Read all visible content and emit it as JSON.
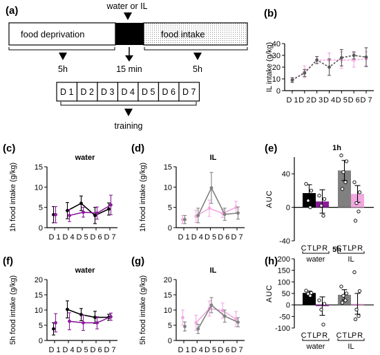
{
  "figure": {
    "panel_labels": {
      "a": "(a)",
      "b": "(b)",
      "c": "(c)",
      "d": "(d)",
      "e": "(e)",
      "f": "(f)",
      "g": "(g)",
      "h": "(h)"
    },
    "protocol": {
      "top_label": "water or IL",
      "deprivation": "food deprivation",
      "intake": "food intake",
      "time_left": "5h",
      "time_mid": "15 min",
      "time_right": "5h",
      "days": [
        "D 1",
        "D 2",
        "D 3",
        "D 4",
        "D 5",
        "D 6",
        "D 7"
      ],
      "training": "training"
    }
  },
  "colors": {
    "black": "#000000",
    "purple": "#8b1a9b",
    "gray": "#808080",
    "pink": "#f2a8e0",
    "light_purple": "#e8b6e0",
    "dark_gray": "#595959"
  },
  "chart_data": [
    {
      "panel": "b",
      "type": "line",
      "title": "",
      "ylabel": "IL intake (g/kg)",
      "categories": [
        "D 1",
        "D 2",
        "D 3",
        "D 4",
        "D 5",
        "D 6",
        "D 7"
      ],
      "ylim": [
        0,
        40
      ],
      "yticks": [
        0,
        10,
        20,
        30,
        40
      ],
      "series": [
        {
          "color": "#f2a8e0",
          "values": [
            9,
            16,
            26,
            26,
            26,
            26,
            27
          ],
          "err": [
            2,
            5,
            3,
            6,
            7,
            6,
            6
          ]
        },
        {
          "color": "#595959",
          "values": [
            9,
            15,
            26,
            20,
            28,
            30,
            28.5
          ],
          "err": [
            2,
            3,
            3,
            7,
            7,
            3,
            8
          ]
        }
      ]
    },
    {
      "panel": "c",
      "type": "line",
      "title": "water",
      "ylabel": "1h food intake (g/kg)",
      "categories": [
        "D 1",
        "D 4",
        "D 5",
        "D 6",
        "D 7"
      ],
      "ylim": [
        0,
        15
      ],
      "yticks": [
        0,
        5,
        10,
        15
      ],
      "series": [
        {
          "color": "#000000",
          "values": [
            3.2,
            4.2,
            6.0,
            3.0,
            4.6
          ],
          "err": [
            2.0,
            2.0,
            1.8,
            2.0,
            1.5
          ]
        },
        {
          "color": "#8b1a9b",
          "values": [
            3.2,
            3.0,
            3.8,
            3.6,
            5.6
          ],
          "err": [
            2.0,
            1.5,
            1.2,
            1.5,
            2.4
          ]
        }
      ]
    },
    {
      "panel": "d",
      "type": "line",
      "title": "IL",
      "ylabel": "1h food intake (g/kg)",
      "categories": [
        "D 1",
        "D 4",
        "D 5",
        "D 6",
        "D 7"
      ],
      "ylim": [
        0,
        15
      ],
      "yticks": [
        0,
        5,
        10,
        15
      ],
      "series": [
        {
          "color": "#f2a8e0",
          "values": [
            2.0,
            2.8,
            4.8,
            3.5,
            5.0
          ],
          "err": [
            1.0,
            1.5,
            2.0,
            1.0,
            1.5
          ]
        },
        {
          "color": "#808080",
          "values": [
            2.0,
            3.0,
            9.8,
            3.3,
            3.6
          ],
          "err": [
            1.0,
            1.8,
            3.8,
            1.5,
            1.5
          ]
        }
      ]
    },
    {
      "panel": "e",
      "type": "bar",
      "title": "1h",
      "ylabel": "AUC",
      "categories": [
        "CTL",
        "PR",
        "CTL",
        "PR"
      ],
      "groups": [
        "water",
        "IL"
      ],
      "ylim": [
        -40,
        60
      ],
      "yticks": [
        -40,
        0,
        40
      ],
      "values": [
        17,
        7,
        44,
        16
      ],
      "err": [
        10,
        14,
        12,
        10
      ],
      "colors": [
        "#000000",
        "#8b1a9b",
        "#808080",
        "#f2a8e0"
      ],
      "points": [
        [
          28,
          20,
          8,
          0
        ],
        [
          14,
          10,
          2,
          -10
        ],
        [
          62,
          55,
          42,
          30,
          22
        ],
        [
          30,
          18,
          5,
          -5,
          -16
        ]
      ]
    },
    {
      "panel": "f",
      "type": "line",
      "title": "water",
      "ylabel": "5h food intake (g/kg)",
      "categories": [
        "D 1",
        "D 4",
        "D 5",
        "D 6",
        "D 7"
      ],
      "ylim": [
        0,
        20
      ],
      "yticks": [
        0,
        5,
        10,
        15,
        20
      ],
      "series": [
        {
          "color": "#000000",
          "values": [
            3.8,
            10.2,
            8.5,
            7.6,
            7.6
          ],
          "err": [
            2.0,
            2.8,
            2.0,
            2.0,
            1.0
          ]
        },
        {
          "color": "#8b1a9b",
          "values": [
            5.8,
            6.3,
            5.8,
            5.8,
            7.8
          ],
          "err": [
            3.0,
            2.8,
            2.5,
            2.0,
            1.2
          ]
        }
      ]
    },
    {
      "panel": "g",
      "type": "line",
      "title": "IL",
      "ylabel": "5h food intake (g/kg)",
      "categories": [
        "D 1",
        "D 4",
        "D 5",
        "D 6",
        "D 7"
      ],
      "ylim": [
        0,
        20
      ],
      "yticks": [
        0,
        5,
        10,
        15,
        20
      ],
      "series": [
        {
          "color": "#f2a8e0",
          "values": [
            7.5,
            5.8,
            10.5,
            9.8,
            7.0
          ],
          "err": [
            2.5,
            2.5,
            2.5,
            2.5,
            2.5
          ]
        },
        {
          "color": "#808080",
          "values": [
            4.6,
            3.8,
            11.6,
            8.0,
            6.0
          ],
          "err": [
            1.5,
            1.5,
            2.5,
            2.0,
            1.5
          ]
        }
      ]
    },
    {
      "panel": "h",
      "type": "bar",
      "title": "5h",
      "ylabel": "AUC",
      "categories": [
        "CTL",
        "PR",
        "CTL",
        "PR"
      ],
      "groups": [
        "water",
        "IL"
      ],
      "ylim": [
        -100,
        200
      ],
      "yticks": [
        -100,
        -50,
        0,
        50,
        100,
        150,
        200
      ],
      "values": [
        52,
        -5,
        44,
        5
      ],
      "err": [
        8,
        40,
        22,
        45
      ],
      "colors": [
        "#000000",
        "#8b1a9b",
        "#808080",
        "#f2a8e0"
      ],
      "points": [
        [
          62,
          52,
          48,
          40
        ],
        [
          20,
          5,
          -20,
          -85
        ],
        [
          80,
          50,
          40,
          20,
          10
        ],
        [
          142,
          60,
          -20,
          -48,
          -62
        ]
      ]
    }
  ]
}
